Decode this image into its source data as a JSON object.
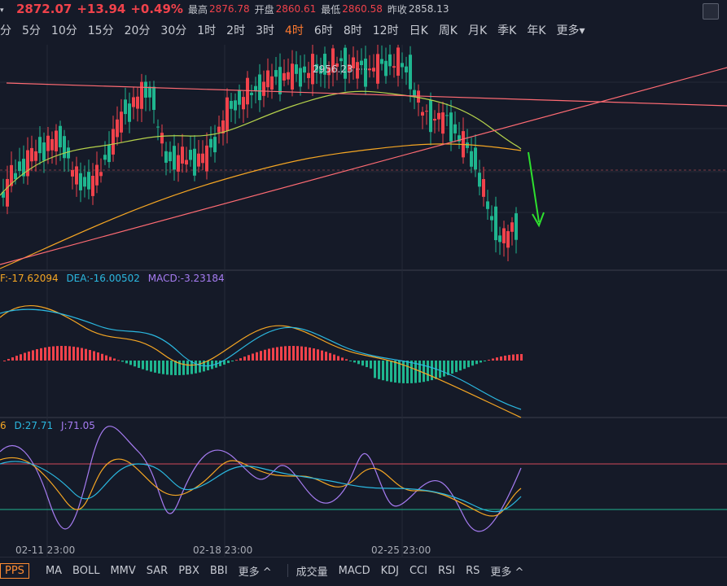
{
  "quote": {
    "last": "2872.07",
    "change": "+13.94",
    "change_pct": "+0.49%",
    "high_label": "最高",
    "high": "2876.78",
    "open_label": "开盘",
    "open": "2860.61",
    "low_label": "最低",
    "low": "2860.58",
    "prev_label": "昨收",
    "prev": "2858.13"
  },
  "intervals": [
    "分",
    "5分",
    "10分",
    "15分",
    "20分",
    "30分",
    "1时",
    "2时",
    "3时",
    "4时",
    "6时",
    "8时",
    "12时",
    "日K",
    "周K",
    "月K",
    "季K",
    "年K",
    "更多▾"
  ],
  "active_interval": "4时",
  "main_chart": {
    "peak_label": "2956.23",
    "x_ticks": [
      "02-11 23:00",
      "02-18 23:00",
      "02-25 23:00"
    ]
  },
  "macd": {
    "dif_label": "F:-17.62094",
    "dea_label": "DEA:-16.00502",
    "macd_label": "MACD:-3.23184"
  },
  "kdj": {
    "k_label": "6",
    "d_label": "D:27.71",
    "j_label": "J:71.05"
  },
  "bottom_tabs": {
    "active": "PPS",
    "main": [
      "MA",
      "BOLL",
      "MMV",
      "SAR",
      "PBX",
      "BBI",
      "更多 ^"
    ],
    "sub": [
      "成交量",
      "MACD",
      "KDJ",
      "CCI",
      "RSI",
      "RS",
      "更多 ^"
    ]
  },
  "colors": {
    "up": "#f0424b",
    "down": "#1fb58f",
    "ma_short": "#b5d24b",
    "ma_long": "#f5a623",
    "trend": "#ff6b73",
    "arrow": "#2ee02e",
    "dif": "#f5a623",
    "dea": "#2bb8e0",
    "j": "#a67cf2"
  }
}
